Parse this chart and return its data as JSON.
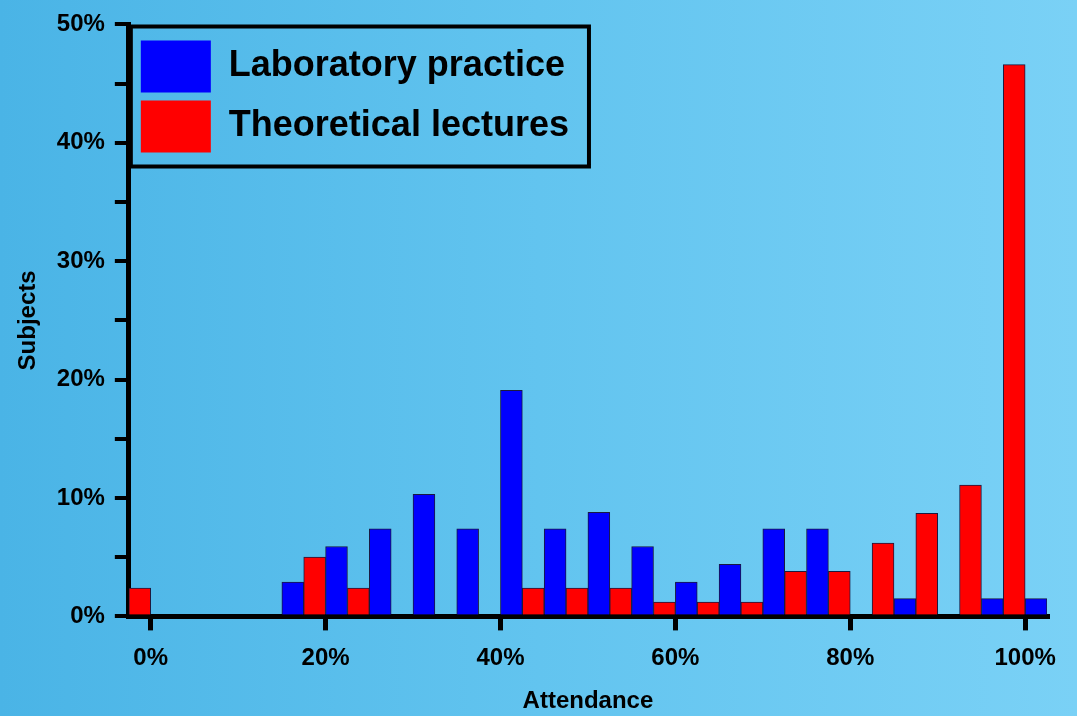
{
  "chart_data": {
    "type": "bar",
    "xlabel": "Attendance",
    "ylabel": "Subjects",
    "categories": [
      "0%",
      null,
      null,
      null,
      "20%",
      null,
      null,
      null,
      "40%",
      null,
      null,
      null,
      "60%",
      null,
      null,
      null,
      "80%",
      null,
      null,
      null,
      "100%"
    ],
    "series": [
      {
        "name": "Laboratory practice",
        "color": "#0000ff",
        "values": [
          0,
          0,
          0,
          2.9,
          5.9,
          7.4,
          10.3,
          7.4,
          19.1,
          7.4,
          8.8,
          5.9,
          2.9,
          4.4,
          7.4,
          7.4,
          0,
          1.5,
          0,
          1.5,
          1.5
        ]
      },
      {
        "name": "Theoretical lectures",
        "color": "#ff0000",
        "values": [
          2.4,
          0,
          0,
          0,
          5.0,
          2.4,
          0,
          0,
          0,
          2.4,
          2.4,
          2.4,
          1.2,
          1.2,
          1.2,
          3.8,
          3.8,
          6.2,
          8.7,
          11.1,
          46.6
        ]
      }
    ],
    "ylim": [
      0,
      50
    ],
    "yticks": [
      {
        "value": 0,
        "label": "0%"
      },
      {
        "value": 5,
        "label": null
      },
      {
        "value": 10,
        "label": "10%"
      },
      {
        "value": 15,
        "label": null
      },
      {
        "value": 20,
        "label": "20%"
      },
      {
        "value": 25,
        "label": null
      },
      {
        "value": 30,
        "label": "30%"
      },
      {
        "value": 35,
        "label": null
      },
      {
        "value": 40,
        "label": "40%"
      },
      {
        "value": 45,
        "label": null
      },
      {
        "value": 50,
        "label": "50%"
      }
    ],
    "legend": "top left",
    "grid": false
  }
}
